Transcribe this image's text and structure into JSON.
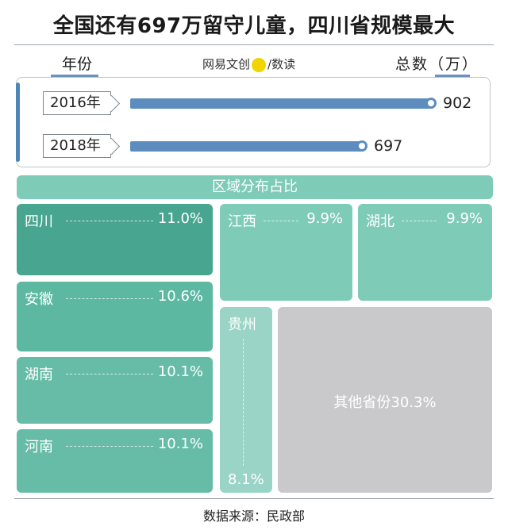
{
  "title": "全国还有697万留守儿童，四川省规模最大",
  "brand": {
    "left": "网易文创",
    "right": "数读"
  },
  "header": {
    "left": "年份",
    "right": "总数（万）"
  },
  "bar_section": {
    "rows": [
      {
        "year": "2016年",
        "value": 902
      },
      {
        "year": "2018年",
        "value": 697
      }
    ]
  },
  "region_header": "区域分布占比",
  "regions": {
    "sichuan": {
      "name": "四川",
      "pct": "11.0%",
      "color": "#48a58f"
    },
    "jiangxi": {
      "name": "江西",
      "pct": "9.9%",
      "color": "#7ecbb8"
    },
    "hubei": {
      "name": "湖北",
      "pct": "9.9%",
      "color": "#7ecbb8"
    },
    "anhui": {
      "name": "安徽",
      "pct": "10.6%",
      "color": "#5db8a2"
    },
    "hunan": {
      "name": "湖南",
      "pct": "10.1%",
      "color": "#66bca7"
    },
    "henan": {
      "name": "河南",
      "pct": "10.1%",
      "color": "#66bca7"
    },
    "guizhou": {
      "name": "贵州",
      "pct": "8.1%",
      "color": "#99d4c6"
    },
    "other": {
      "name": "其他省份30.3%",
      "color": "#c9c9cb"
    }
  },
  "source": "数据来源：民政部",
  "chart_data": [
    {
      "type": "bar",
      "categories": [
        "2016年",
        "2018年"
      ],
      "values": [
        902,
        697
      ],
      "xlabel": "年份",
      "ylabel": "总数（万）"
    },
    {
      "type": "treemap",
      "title": "区域分布占比",
      "categories": [
        "四川",
        "安徽",
        "湖南",
        "河南",
        "江西",
        "湖北",
        "贵州",
        "其他省份"
      ],
      "values": [
        11.0,
        10.6,
        10.1,
        10.1,
        9.9,
        9.9,
        8.1,
        30.3
      ],
      "unit": "%"
    }
  ]
}
